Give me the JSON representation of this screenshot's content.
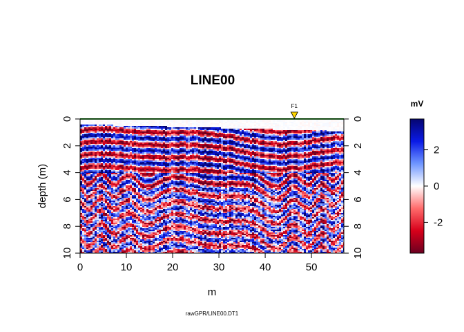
{
  "chart_data": {
    "type": "heatmap",
    "title": "LINE00",
    "xlabel": "m",
    "ylabel": "depth (m)",
    "xlim": [
      0,
      57
    ],
    "ylim": [
      10,
      0
    ],
    "x_ticks": [
      "0",
      "10",
      "20",
      "30",
      "40",
      "50"
    ],
    "y_ticks": [
      "0",
      "2",
      "4",
      "6",
      "8",
      "10"
    ],
    "y_ticks_right": [
      "0",
      "2",
      "4",
      "6",
      "8",
      "10"
    ],
    "marker": {
      "label": "F1",
      "x": 46.3,
      "color": "#ffd700"
    },
    "caption": "rawGPR/LINE00.DT1",
    "colorbar": {
      "title": "mV",
      "range": [
        -3.7,
        3.7
      ],
      "ticks": [
        "2",
        "0",
        "-2"
      ],
      "tick_values": [
        2,
        0,
        -2
      ],
      "colors": [
        "#6b0020",
        "#d7001a",
        "#ff6b6b",
        "#ffffff",
        "#6f96ff",
        "#0a1ae6",
        "#050570"
      ]
    },
    "surface_line_color": "#1a8a1a",
    "grid": false
  }
}
